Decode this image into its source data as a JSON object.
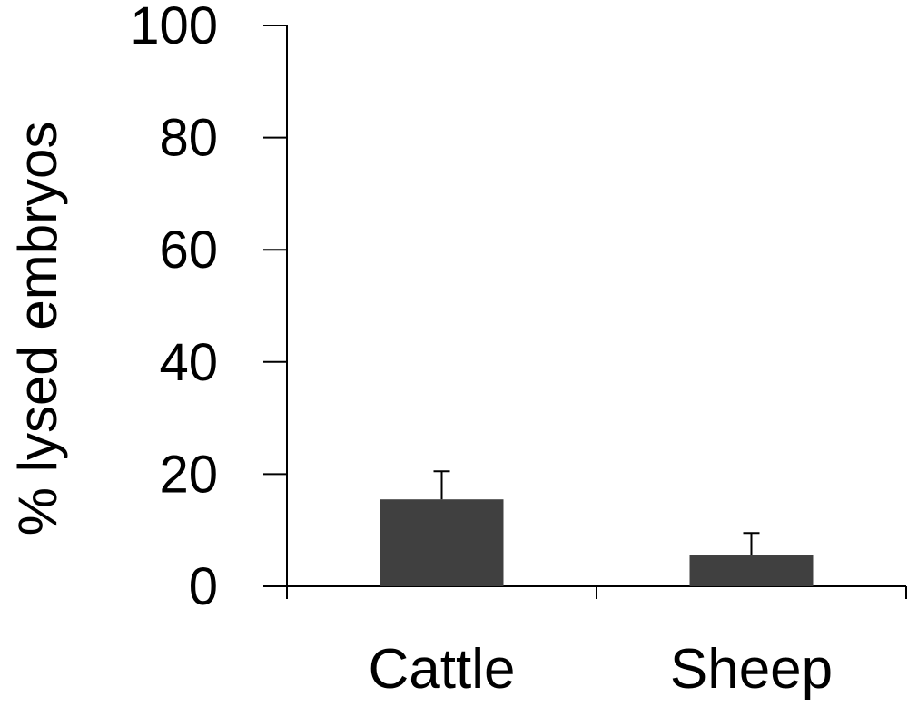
{
  "chart_data": {
    "type": "bar",
    "title": "",
    "xlabel": "",
    "ylabel": "% lysed embryos",
    "categories": [
      "Cattle",
      "Sheep"
    ],
    "values": [
      15.5,
      5.5
    ],
    "error_upper": [
      5.0,
      4.0
    ],
    "ylim": [
      0,
      100
    ],
    "yticks": [
      0,
      20,
      40,
      60,
      80,
      100
    ],
    "ytick_labels": [
      "0",
      "20",
      "40",
      "60",
      "80",
      "100"
    ],
    "grid": false,
    "legend": "none",
    "bar_color": "#404040"
  }
}
